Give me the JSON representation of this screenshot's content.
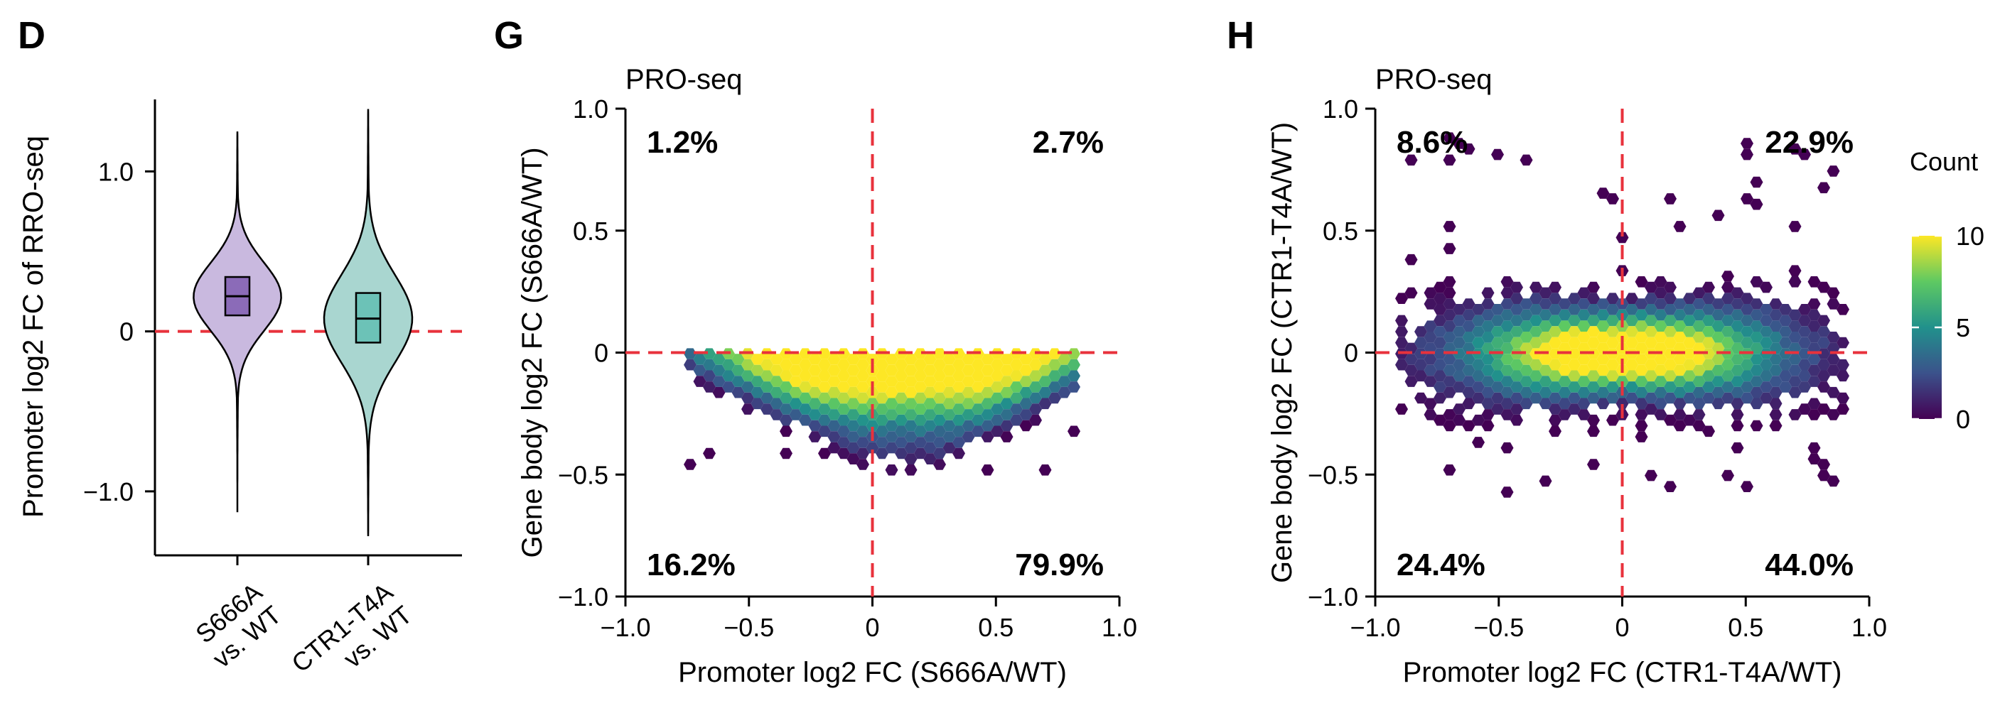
{
  "chart_data": [
    {
      "panel": "D",
      "type": "violin",
      "ylabel": "Promoter log2 FC of RRO-seq",
      "ylim": [
        -1.4,
        1.45
      ],
      "yticks": [
        1.0,
        0,
        -1.0
      ],
      "ytick_labels": [
        "1.0",
        "0",
        "−1.0"
      ],
      "reference_line": {
        "y": 0,
        "style": "dashed",
        "color": "#e8323c"
      },
      "categories": [
        {
          "label_lines": [
            "S666A",
            "vs. WT"
          ],
          "color": "#c9b9df",
          "box_color": "#8b6bb8",
          "min": -1.13,
          "q1": 0.1,
          "median": 0.22,
          "q3": 0.34,
          "max": 1.25
        },
        {
          "label_lines": [
            "CTR1-T4A",
            "vs. WT"
          ],
          "color": "#a9d6d0",
          "box_color": "#6cc2b7",
          "min": -1.28,
          "q1": -0.07,
          "median": 0.08,
          "q3": 0.24,
          "max": 1.39
        }
      ]
    },
    {
      "panel": "G",
      "type": "hexbin",
      "subtitle": "PRO-seq",
      "xlabel": "Promoter log2 FC (S666A/WT)",
      "ylabel": "Gene body log2 FC (S666A/WT)",
      "xlim": [
        -1.0,
        1.0
      ],
      "ylim": [
        -1.0,
        1.0
      ],
      "xticks": [
        -1.0,
        -0.5,
        0,
        0.5,
        1.0
      ],
      "xtick_labels": [
        "−1.0",
        "−0.5",
        "0",
        "0.5",
        "1.0"
      ],
      "yticks": [
        1.0,
        0.5,
        0,
        -0.5,
        -1.0
      ],
      "ytick_labels": [
        "1.0",
        "0.5",
        "0",
        "−0.5",
        "−1.0"
      ],
      "quadrant_percentages": {
        "top_left": "1.2%",
        "top_right": "2.7%",
        "bottom_left": "16.2%",
        "bottom_right": "79.9%"
      },
      "reference_lines": {
        "x": 0,
        "y": 0,
        "style": "dashed",
        "color": "#e8323c"
      },
      "density": {
        "center": [
          0.2,
          -0.1
        ],
        "sx": 0.35,
        "sy": 0.12,
        "shape": "triangle-downward",
        "range_x": [
          -0.75,
          0.85
        ],
        "range_y": [
          -0.5,
          0.0
        ]
      }
    },
    {
      "panel": "H",
      "type": "hexbin",
      "subtitle": "PRO-seq",
      "xlabel": "Promoter log2 FC (CTR1-T4A/WT)",
      "ylabel": "Gene body log2 FC (CTR1-T4A/WT)",
      "xlim": [
        -1.0,
        1.0
      ],
      "ylim": [
        -1.0,
        1.0
      ],
      "xticks": [
        -1.0,
        -0.5,
        0,
        0.5,
        1.0
      ],
      "xtick_labels": [
        "−1.0",
        "−0.5",
        "0",
        "0.5",
        "1.0"
      ],
      "yticks": [
        1.0,
        0.5,
        0,
        -0.5,
        -1.0
      ],
      "ytick_labels": [
        "1.0",
        "0.5",
        "0",
        "−0.5",
        "−1.0"
      ],
      "quadrant_percentages": {
        "top_left": "8.6%",
        "top_right": "22.9%",
        "bottom_left": "24.4%",
        "bottom_right": "44.0%"
      },
      "reference_lines": {
        "x": 0,
        "y": 0,
        "style": "dashed",
        "color": "#e8323c"
      },
      "density": {
        "center": [
          0.0,
          0.0
        ],
        "sx": 0.4,
        "sy": 0.1,
        "shape": "ellipse",
        "range_x": [
          -0.9,
          0.9
        ],
        "range_y": [
          -0.6,
          0.9
        ]
      }
    }
  ],
  "legend": {
    "title": "Count",
    "ticks": [
      10,
      5,
      0
    ],
    "tick_labels": [
      "10",
      "5",
      "0"
    ],
    "colormap": "viridis",
    "colors": [
      "#fde725",
      "#5ec962",
      "#21918c",
      "#3b528b",
      "#440154"
    ]
  }
}
